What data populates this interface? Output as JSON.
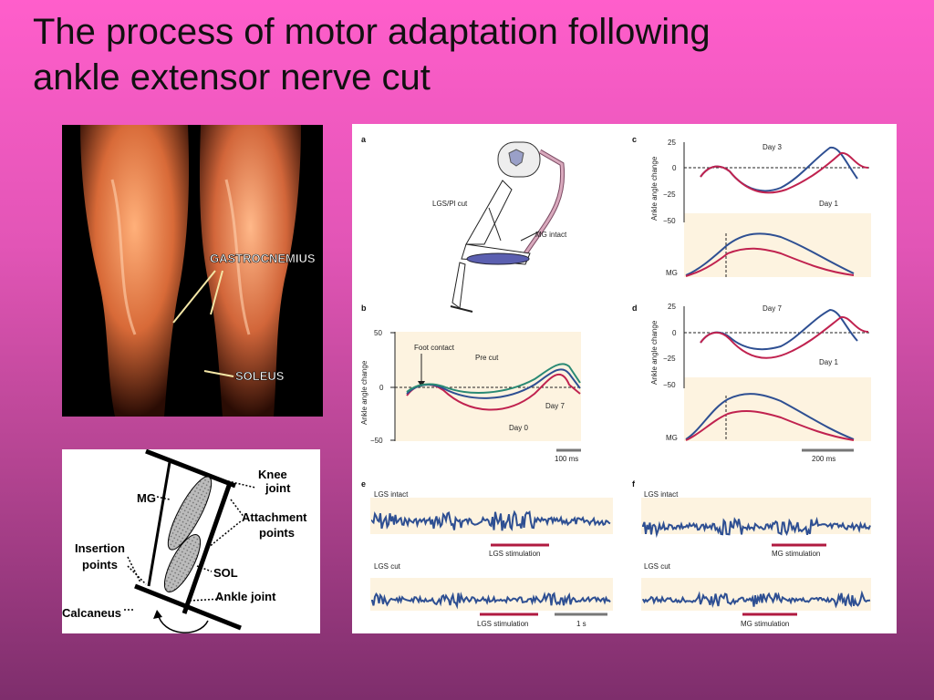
{
  "slide": {
    "title_line1": "The process of motor adaptation following",
    "title_line2": "ankle extensor nerve cut"
  },
  "muscle_photo": {
    "gastrocnemius_label": "GASTROCNEMIUS",
    "soleus_label": "SOLEUS"
  },
  "schematic": {
    "knee_joint": [
      "Knee",
      "joint"
    ],
    "mg": "MG",
    "attachment_points": [
      "Attachment",
      "points"
    ],
    "insertion_points": [
      "Insertion",
      "points"
    ],
    "sol": "SOL",
    "ankle_joint": "Ankle joint",
    "calcaneus": "Calcaneus"
  },
  "figure": {
    "panel_letters": [
      "a",
      "b",
      "c",
      "d",
      "e",
      "f"
    ],
    "panel_a": {
      "lgs_pl_cut": "LGS/Pl cut",
      "mg_intact": "MG intact"
    },
    "panel_b": {
      "ylabel": "Ankle angle change",
      "yticks": [
        "50",
        "0",
        "−50"
      ],
      "foot_contact": "Foot contact",
      "pre_cut": "Pre cut",
      "day7": "Day 7",
      "day0": "Day 0",
      "scale": "100 ms"
    },
    "panel_c": {
      "ylabel": "Ankle angle change",
      "yticks": [
        "25",
        "0",
        "−25",
        "−50"
      ],
      "day3": "Day 3",
      "day1": "Day 1",
      "mg": "MG"
    },
    "panel_d": {
      "ylabel": "Ankle angle change",
      "yticks": [
        "25",
        "0",
        "−25",
        "−50"
      ],
      "day7": "Day 7",
      "day1": "Day 1",
      "mg": "MG",
      "scale": "200 ms"
    },
    "panel_e": {
      "intact": "LGS intact",
      "stim1": "LGS stimulation",
      "cut": "LGS cut",
      "stim2": "LGS stimulation",
      "scale": "1 s"
    },
    "panel_f": {
      "intact": "LGS intact",
      "stim1": "MG stimulation",
      "cut": "LGS cut",
      "stim2": "MG stimulation"
    },
    "colors": {
      "blue": "#2e4f92",
      "red": "#c0224f",
      "green": "#2a8a74",
      "stim": "#b01a40",
      "bg": "#fdf3e0"
    }
  }
}
